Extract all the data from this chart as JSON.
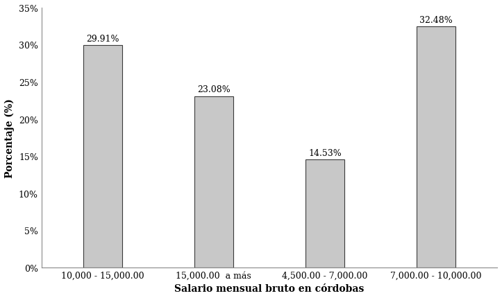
{
  "categories": [
    "10,000 - 15,000.00",
    "15,000.00  a más",
    "4,500.00 - 7,000.00",
    "7,000.00 - 10,000.00"
  ],
  "values": [
    29.91,
    23.08,
    14.53,
    32.48
  ],
  "labels": [
    "29.91%",
    "23.08%",
    "14.53%",
    "32.48%"
  ],
  "bar_color": "#c8c8c8",
  "bar_edgecolor": "#3a3a3a",
  "xlabel": "Salario mensual bruto en córdobas",
  "ylabel": "Porcentaje (%)",
  "ylim": [
    0,
    35
  ],
  "yticks": [
    0,
    5,
    10,
    15,
    20,
    25,
    30,
    35
  ],
  "xlabel_fontsize": 10,
  "ylabel_fontsize": 10,
  "tick_fontsize": 9,
  "label_fontsize": 9,
  "bar_width": 0.35,
  "background_color": "#ffffff"
}
